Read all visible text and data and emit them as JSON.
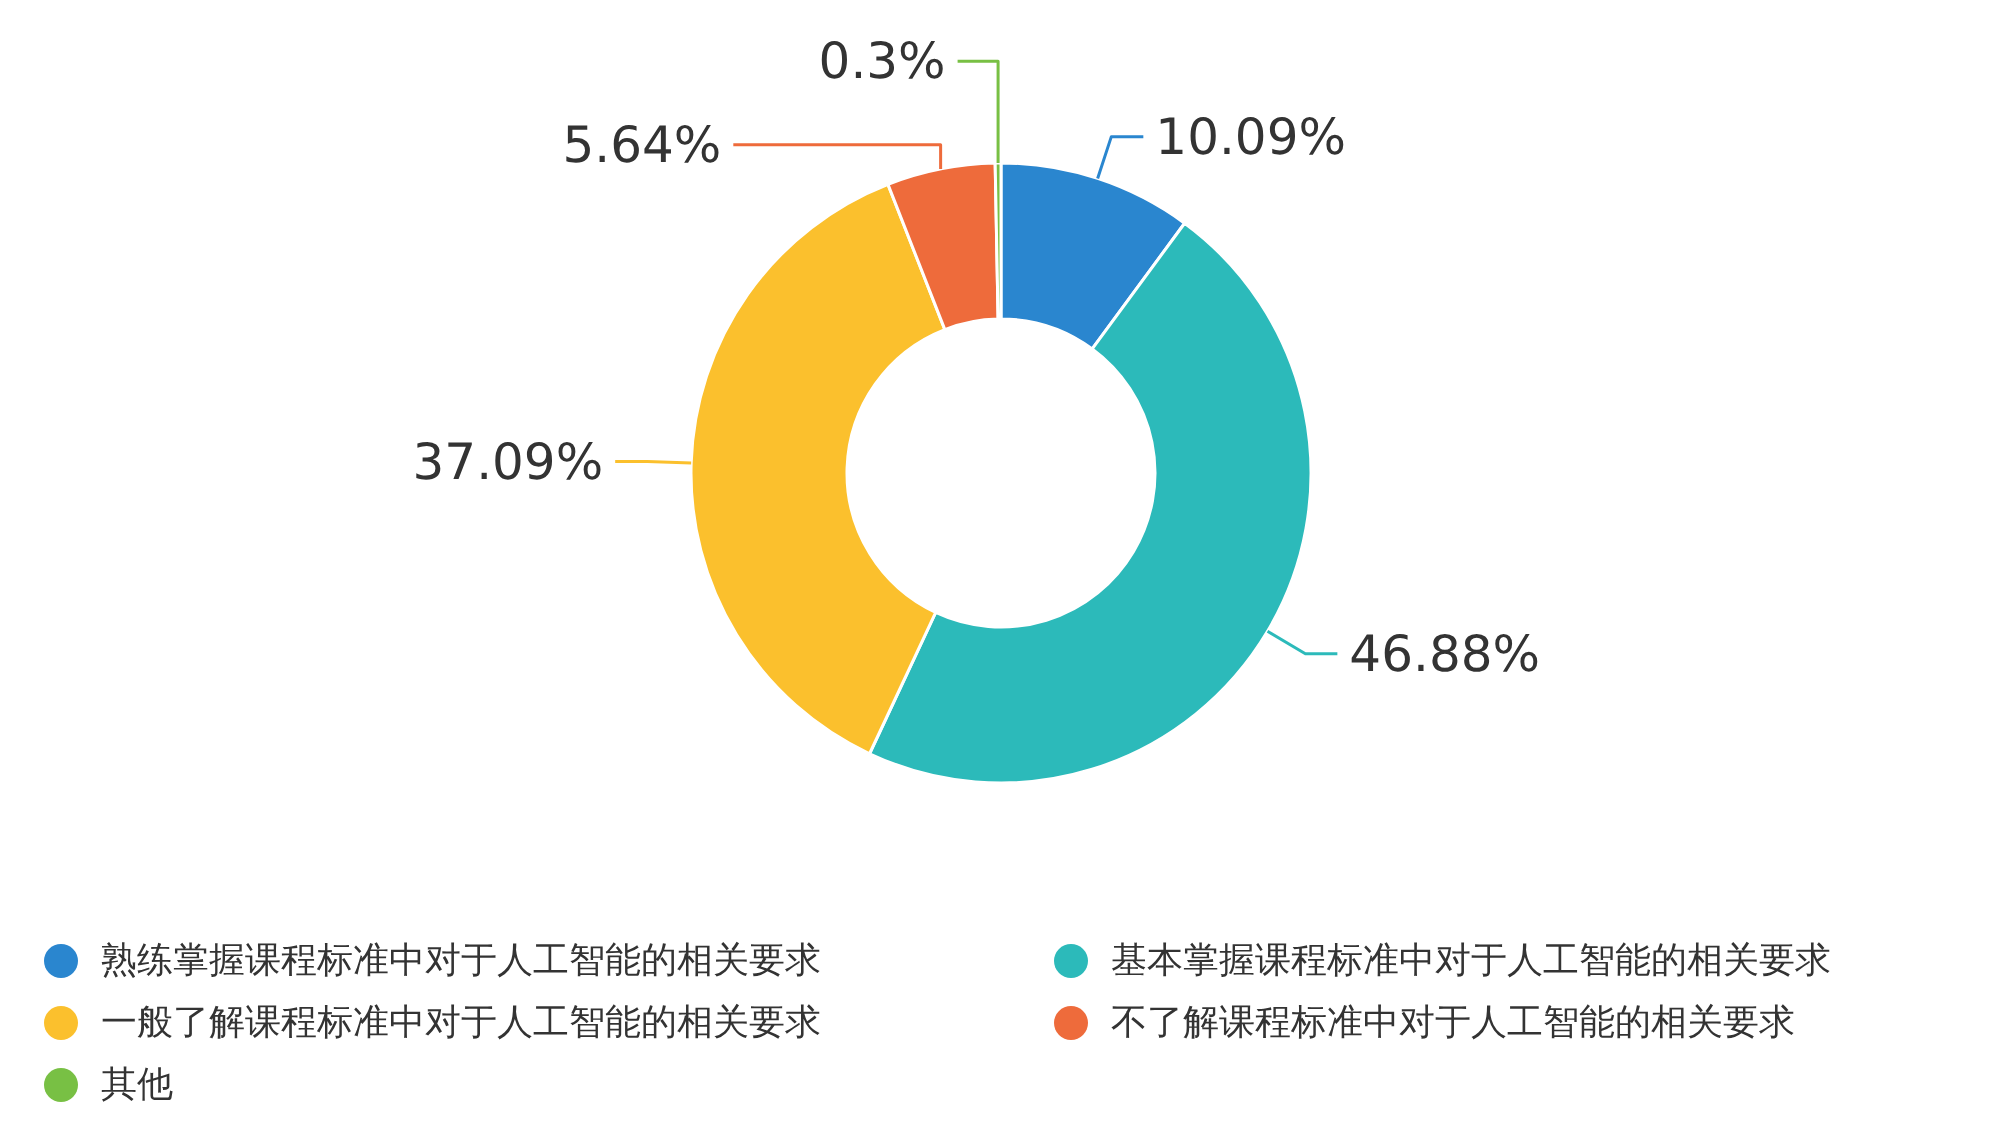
{
  "chart_data": {
    "type": "donut",
    "categories": [
      "熟练掌握课程标准中对于人工智能的相关要求",
      "基本掌握课程标准中对于人工智能的相关要求",
      "一般了解课程标准中对于人工智能的相关要求",
      "不了解课程标准中对于人工智能的相关要求",
      "其他"
    ],
    "values": [
      10.09,
      46.88,
      37.09,
      5.64,
      0.3
    ],
    "colors": [
      "#2a86cf",
      "#2cbaba",
      "#fbc02d",
      "#ee6b3b",
      "#78c044"
    ],
    "value_labels": [
      "10.09%",
      "46.88%",
      "37.09%",
      "5.64%",
      "0.3%"
    ],
    "legend": "bottom"
  }
}
